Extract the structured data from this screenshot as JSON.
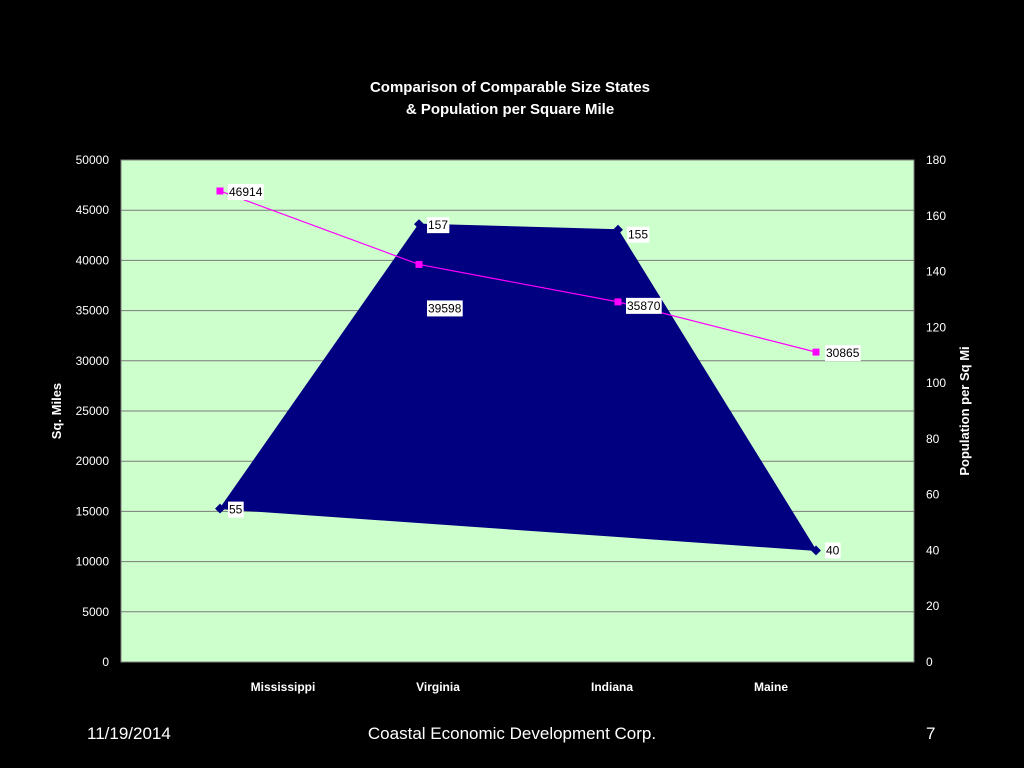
{
  "slide": {
    "date": "11/19/2014",
    "organization": "Coastal Economic Development Corp.",
    "page_number": "7"
  },
  "chart_data": {
    "type": "area",
    "title_lines": [
      "Comparison of Comparable Size States",
      "& Population per Square Mile"
    ],
    "categories": [
      "Mississippi",
      "Virginia",
      "Indiana",
      "Maine"
    ],
    "primary_axis": {
      "label": "Sq. Miles",
      "ylim": [
        0,
        50000
      ],
      "ticks": [
        0,
        5000,
        10000,
        15000,
        20000,
        25000,
        30000,
        35000,
        40000,
        45000,
        50000
      ]
    },
    "secondary_axis": {
      "label": "Population per Sq Mi",
      "ylim": [
        0,
        180
      ],
      "ticks": [
        0,
        20,
        40,
        60,
        80,
        100,
        120,
        140,
        160,
        180
      ]
    },
    "grid": true,
    "colors": {
      "plot_background": "#ccffcc",
      "area_fill": "#000080",
      "population_line": "#ff00ff",
      "gridline": "#7a7a7a"
    },
    "series": [
      {
        "name": "Sq. Miles",
        "axis": "primary",
        "values": [
          46914,
          39598,
          35870,
          30865
        ],
        "data_labels": [
          "46914",
          "39598",
          "35870",
          "30865"
        ]
      },
      {
        "name": "Population per Sq Mi",
        "axis": "secondary",
        "values": [
          55,
          157,
          155,
          40
        ],
        "data_labels": [
          "55",
          "157",
          "155",
          "40"
        ]
      }
    ]
  }
}
